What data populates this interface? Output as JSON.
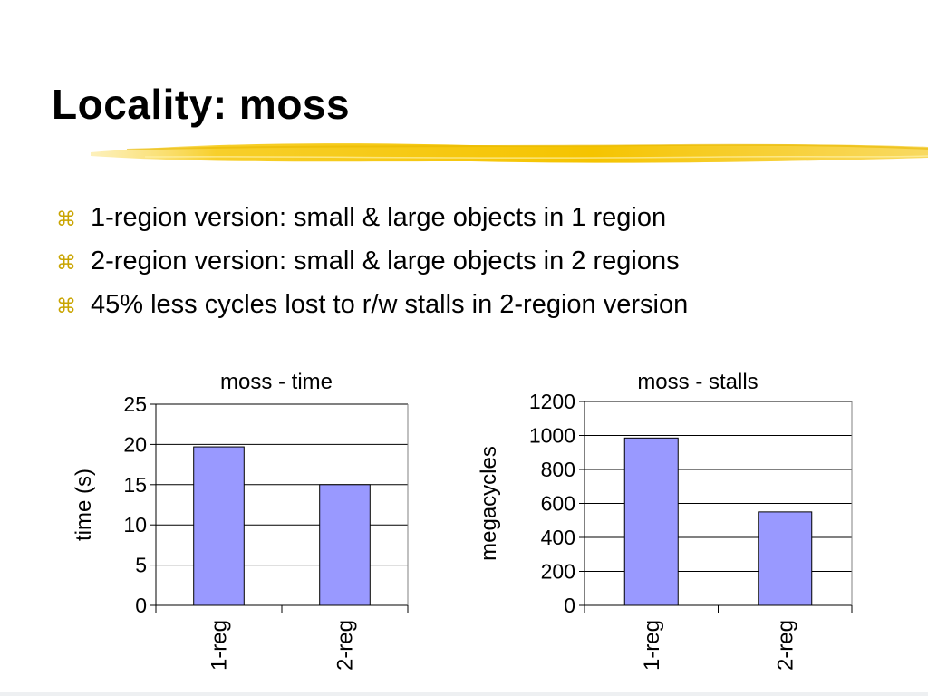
{
  "slide": {
    "title": "Locality: moss",
    "bullet_icon": "z-bullet-icon",
    "bullets": [
      "1-region version: small & large objects in 1 region",
      "2-region version: small & large objects in 2 regions",
      "45% less cycles lost to r/w stalls in 2-region version"
    ],
    "colors": {
      "accent": "#f5c400",
      "bar_fill": "#9999ff",
      "bar_stroke": "#000000"
    }
  },
  "chart_data": [
    {
      "type": "bar",
      "title": "moss - time",
      "xlabel": "",
      "ylabel": "time (s)",
      "categories": [
        "1-reg",
        "2-reg"
      ],
      "values": [
        19.7,
        15.0
      ],
      "ylim": [
        0,
        25
      ],
      "yticks": [
        0,
        5,
        10,
        15,
        20,
        25
      ],
      "grid": true,
      "legend": "none"
    },
    {
      "type": "bar",
      "title": "moss - stalls",
      "xlabel": "",
      "ylabel": "megacycles",
      "categories": [
        "1-reg",
        "2-reg"
      ],
      "values": [
        985,
        550
      ],
      "ylim": [
        0,
        1200
      ],
      "yticks": [
        0,
        200,
        400,
        600,
        800,
        1000,
        1200
      ],
      "grid": true,
      "legend": "none"
    }
  ]
}
